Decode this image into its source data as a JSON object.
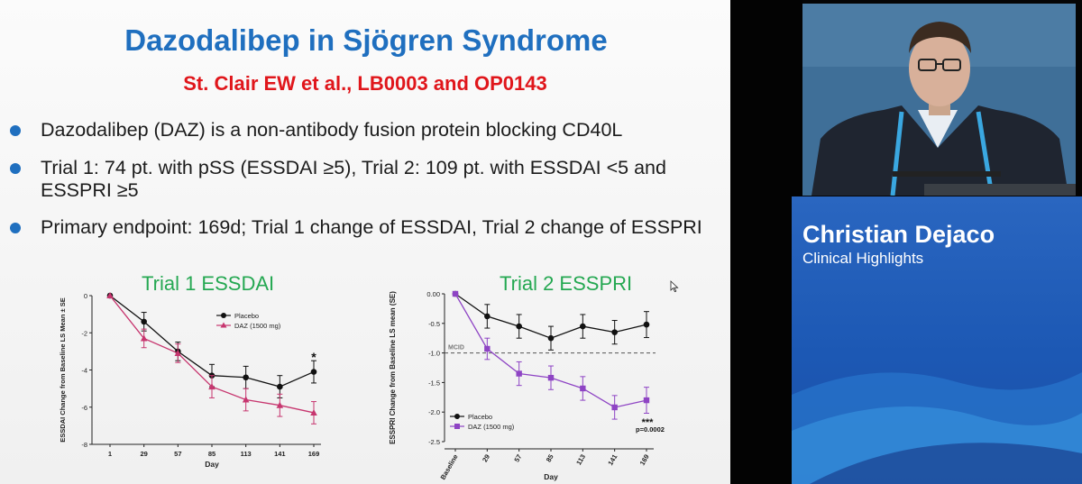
{
  "slide": {
    "title": "Dazodalibep in Sjögren Syndrome",
    "subtitle": "St. Clair EW et al., LB0003 and OP0143",
    "bullets": [
      "Dazodalibep (DAZ) is a non-antibody fusion protein blocking CD40L",
      "Trial 1: 74 pt. with pSS (ESSDAI ≥5), Trial 2: 109 pt. with ESSDAI <5 and ESSPRI ≥5",
      "Primary endpoint: 169d; Trial 1 change of ESSDAI, Trial 2 change of ESSPRI"
    ]
  },
  "speaker": {
    "name": "Christian Dejaco",
    "role": "Clinical Highlights"
  },
  "colors": {
    "title_blue": "#1f6fbf",
    "subtitle_red": "#e0161b",
    "chart_title_green": "#25a852",
    "placebo": "#111111",
    "daz_trial1": "#c7366f",
    "daz_trial2": "#8e44c4",
    "banner_blue": "#1c58b4"
  },
  "chart_data": [
    {
      "type": "line",
      "title": "Trial 1 ESSDAI",
      "xlabel": "Day",
      "ylabel": "ESSDAI Change from Baseline LS Mean ± SE",
      "x": [
        1,
        29,
        57,
        85,
        113,
        141,
        169
      ],
      "x_tick_labels": [
        "1",
        "29",
        "57",
        "85",
        "113",
        "141",
        "169"
      ],
      "ylim": [
        -8,
        0
      ],
      "y_ticks": [
        0,
        -2,
        -4,
        -6,
        -8
      ],
      "y_tick_labels": [
        "0",
        "-2",
        "-4",
        "-6",
        "-8"
      ],
      "legend_position": "top-right",
      "series": [
        {
          "name": "Placebo",
          "values": [
            0,
            -1.4,
            -3.0,
            -4.3,
            -4.4,
            -4.9,
            -4.1
          ],
          "error": [
            0,
            0.5,
            0.5,
            0.6,
            0.6,
            0.6,
            0.6
          ]
        },
        {
          "name": "DAZ (1500 mg)",
          "values": [
            0,
            -2.3,
            -3.1,
            -4.9,
            -5.6,
            -5.9,
            -6.3
          ],
          "error": [
            0,
            0.5,
            0.5,
            0.6,
            0.6,
            0.6,
            0.6
          ]
        }
      ],
      "annotations": [
        {
          "text": "*",
          "x": 169
        }
      ]
    },
    {
      "type": "line",
      "title": "Trial 2 ESSPRI",
      "xlabel": "Day",
      "ylabel": "ESSPRI Change from Baseline LS mean (SE)",
      "x": [
        "Baseline",
        "29",
        "57",
        "85",
        "113",
        "141",
        "169"
      ],
      "ylim": [
        -2.5,
        0
      ],
      "y_ticks": [
        0,
        -0.5,
        -1.0,
        -1.5,
        -2.0,
        -2.5
      ],
      "y_tick_labels": [
        "0.00",
        "-0.5",
        "-1.0",
        "-1.5",
        "-2.0",
        "-2.5"
      ],
      "legend_position": "bottom-left",
      "reference_line": {
        "label": "MCID",
        "y": -1.0
      },
      "series": [
        {
          "name": "Placebo",
          "values": [
            0,
            -0.38,
            -0.55,
            -0.75,
            -0.55,
            -0.65,
            -0.52
          ],
          "error": [
            0,
            0.2,
            0.2,
            0.2,
            0.2,
            0.2,
            0.22
          ]
        },
        {
          "name": "DAZ (1500 mg)",
          "values": [
            0,
            -0.93,
            -1.35,
            -1.42,
            -1.6,
            -1.92,
            -1.8
          ],
          "error": [
            0,
            0.18,
            0.2,
            0.2,
            0.2,
            0.2,
            0.22
          ]
        }
      ],
      "annotations": [
        {
          "text": "***",
          "x": "169"
        },
        {
          "text": "p=0.0002",
          "x": "169"
        }
      ]
    }
  ]
}
